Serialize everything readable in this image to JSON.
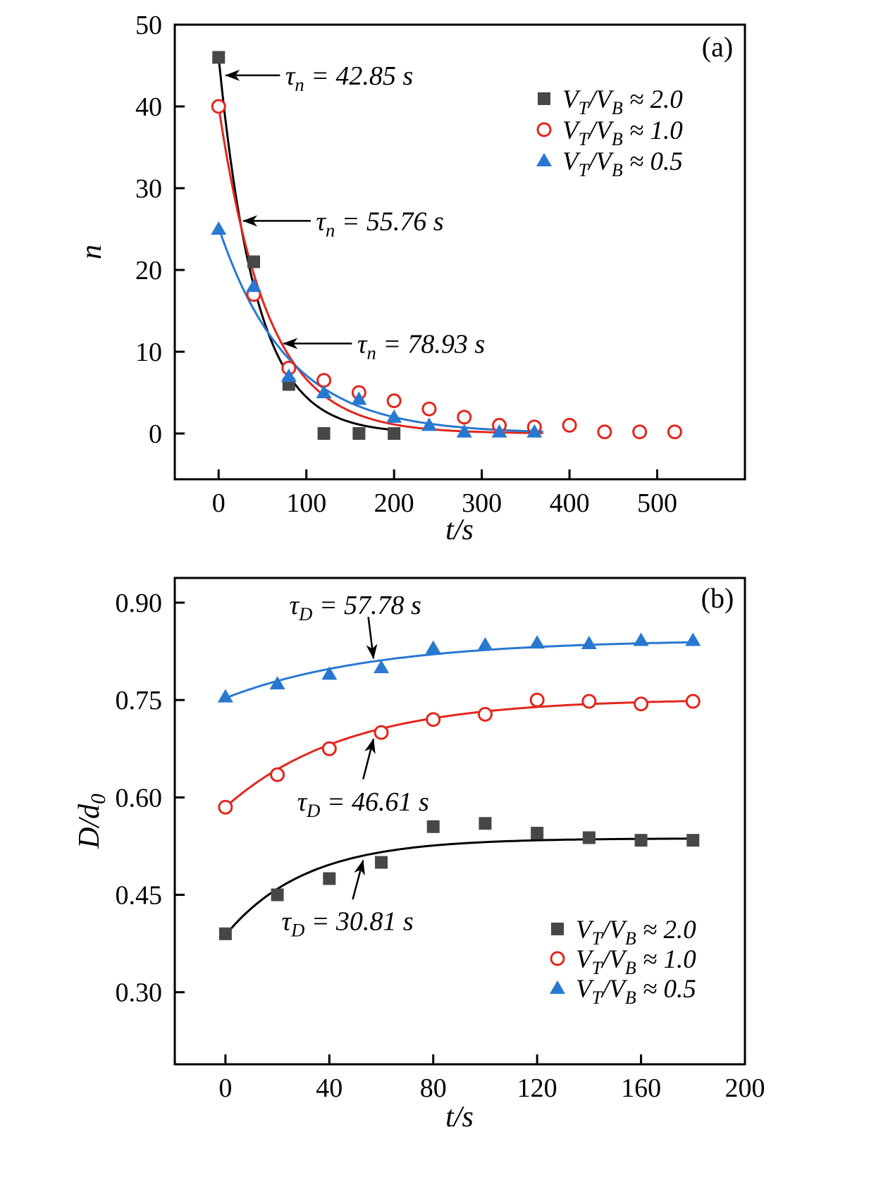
{
  "chart_data": [
    {
      "type": "scatter",
      "panel_tag": "(a)",
      "xlabel": "t/s",
      "ylabel": "n",
      "xlim": [
        -50,
        600
      ],
      "ylim": [
        -5.6,
        50
      ],
      "xticks": {
        "values": [
          0,
          100,
          200,
          300,
          400,
          500
        ],
        "labels": [
          "0",
          "100",
          "200",
          "300",
          "400",
          "500"
        ]
      },
      "yticks": {
        "values": [
          0,
          10,
          20,
          30,
          40,
          50
        ],
        "labels": [
          "0",
          "10",
          "20",
          "30",
          "40",
          "50"
        ]
      },
      "legend_position": "top-right",
      "series": [
        {
          "name": "V_T/V_B ≈ 2.0",
          "marker": "filled-square",
          "color": "#474747",
          "x": [
            0,
            40,
            80,
            120,
            160,
            200
          ],
          "y": [
            46,
            21,
            6,
            0,
            0,
            0
          ],
          "fit": {
            "type": "exp_decay",
            "amplitude": 46,
            "tau": 42.85,
            "t_range": [
              0,
              205
            ],
            "color": "#000000"
          }
        },
        {
          "name": "V_T/V_B ≈ 1.0",
          "marker": "open-circle",
          "color": "#e3261e",
          "x": [
            0,
            40,
            80,
            120,
            160,
            200,
            240,
            280,
            320,
            360,
            400,
            440,
            480,
            520
          ],
          "y": [
            40,
            17,
            8,
            6.5,
            5,
            4,
            3,
            2,
            1,
            0.8,
            1,
            0.2,
            0.2,
            0.2
          ],
          "fit": {
            "type": "exp_decay",
            "amplitude": 40,
            "tau": 55.76,
            "t_range": [
              0,
              370
            ],
            "color": "#e3261e"
          }
        },
        {
          "name": "V_T/V_B ≈ 0.5",
          "marker": "filled-triangle",
          "color": "#2878d2",
          "x": [
            0,
            40,
            80,
            120,
            160,
            200,
            240,
            280,
            320,
            360
          ],
          "y": [
            25,
            18,
            7,
            5,
            4.2,
            2,
            1,
            0.2,
            0.2,
            0.2
          ],
          "fit": {
            "type": "exp_decay",
            "amplitude": 25.2,
            "tau": 78.93,
            "t_range": [
              0,
              370
            ],
            "color": "#2878d2"
          }
        }
      ],
      "annotations": [
        {
          "text": "τ_n = 42.85 s",
          "arrow_tip": [
            8,
            43.8
          ],
          "arrow_tail": [
            70,
            43.8
          ],
          "text_pos": [
            76,
            43.8
          ],
          "anchor": "start"
        },
        {
          "text": "τ_n = 55.76 s",
          "arrow_tip": [
            28,
            26
          ],
          "arrow_tail": [
            105,
            26
          ],
          "text_pos": [
            111,
            26
          ],
          "anchor": "start"
        },
        {
          "text": "τ_n = 78.93 s",
          "arrow_tip": [
            74,
            11
          ],
          "arrow_tail": [
            152,
            11
          ],
          "text_pos": [
            158,
            11
          ],
          "anchor": "start"
        }
      ]
    },
    {
      "type": "scatter",
      "panel_tag": "(b)",
      "xlabel": "t/s",
      "ylabel": "D/d_0",
      "xlim": [
        -19.5,
        200
      ],
      "ylim": [
        0.189,
        0.938
      ],
      "xticks": {
        "values": [
          0,
          40,
          80,
          120,
          160,
          200
        ],
        "labels": [
          "0",
          "40",
          "80",
          "120",
          "160",
          "200"
        ]
      },
      "yticks": {
        "values": [
          0.3,
          0.45,
          0.6,
          0.75,
          0.9
        ],
        "labels": [
          "0.30",
          "0.45",
          "0.60",
          "0.75",
          "0.90"
        ]
      },
      "legend_position": "bottom-right",
      "series": [
        {
          "name": "V_T/V_B ≈ 2.0",
          "marker": "filled-square",
          "color": "#474747",
          "x": [
            0,
            20,
            40,
            60,
            80,
            100,
            120,
            140,
            160,
            180
          ],
          "y": [
            0.39,
            0.45,
            0.475,
            0.5,
            0.555,
            0.56,
            0.545,
            0.538,
            0.534,
            0.534
          ],
          "fit": {
            "type": "exp_rise",
            "y0": 0.388,
            "y_inf": 0.537,
            "tau": 30.81,
            "t_range": [
              0,
              182
            ],
            "color": "#000000"
          }
        },
        {
          "name": "V_T/V_B ≈ 1.0",
          "marker": "open-circle",
          "color": "#e3261e",
          "x": [
            0,
            20,
            40,
            60,
            80,
            100,
            120,
            140,
            160,
            180
          ],
          "y": [
            0.585,
            0.635,
            0.675,
            0.7,
            0.72,
            0.728,
            0.75,
            0.748,
            0.744,
            0.748
          ],
          "fit": {
            "type": "exp_rise",
            "y0": 0.585,
            "y_inf": 0.752,
            "tau": 46.61,
            "t_range": [
              0,
              182
            ],
            "color": "#e3261e"
          }
        },
        {
          "name": "V_T/V_B ≈ 0.5",
          "marker": "filled-triangle",
          "color": "#2878d2",
          "x": [
            0,
            20,
            40,
            60,
            80,
            100,
            120,
            140,
            160,
            180
          ],
          "y": [
            0.755,
            0.775,
            0.79,
            0.8,
            0.83,
            0.835,
            0.838,
            0.837,
            0.842,
            0.842
          ],
          "fit": {
            "type": "exp_rise",
            "y0": 0.753,
            "y_inf": 0.843,
            "tau": 57.78,
            "t_range": [
              0,
              182
            ],
            "color": "#2878d2"
          }
        }
      ],
      "annotations": [
        {
          "text": "τ_D = 57.78 s",
          "arrow_tip": [
            57,
            0.814
          ],
          "arrow_tail": [
            55,
            0.878
          ],
          "text_pos": [
            50,
            0.897
          ],
          "anchor": "middle"
        },
        {
          "text": "τ_D = 46.61 s",
          "arrow_tip": [
            57,
            0.69
          ],
          "arrow_tail": [
            53,
            0.628
          ],
          "text_pos": [
            53,
            0.594
          ],
          "anchor": "middle"
        },
        {
          "text": "τ_D = 30.81 s",
          "arrow_tip": [
            53,
            0.503
          ],
          "arrow_tail": [
            49,
            0.443
          ],
          "text_pos": [
            47,
            0.41
          ],
          "anchor": "middle"
        }
      ]
    }
  ]
}
